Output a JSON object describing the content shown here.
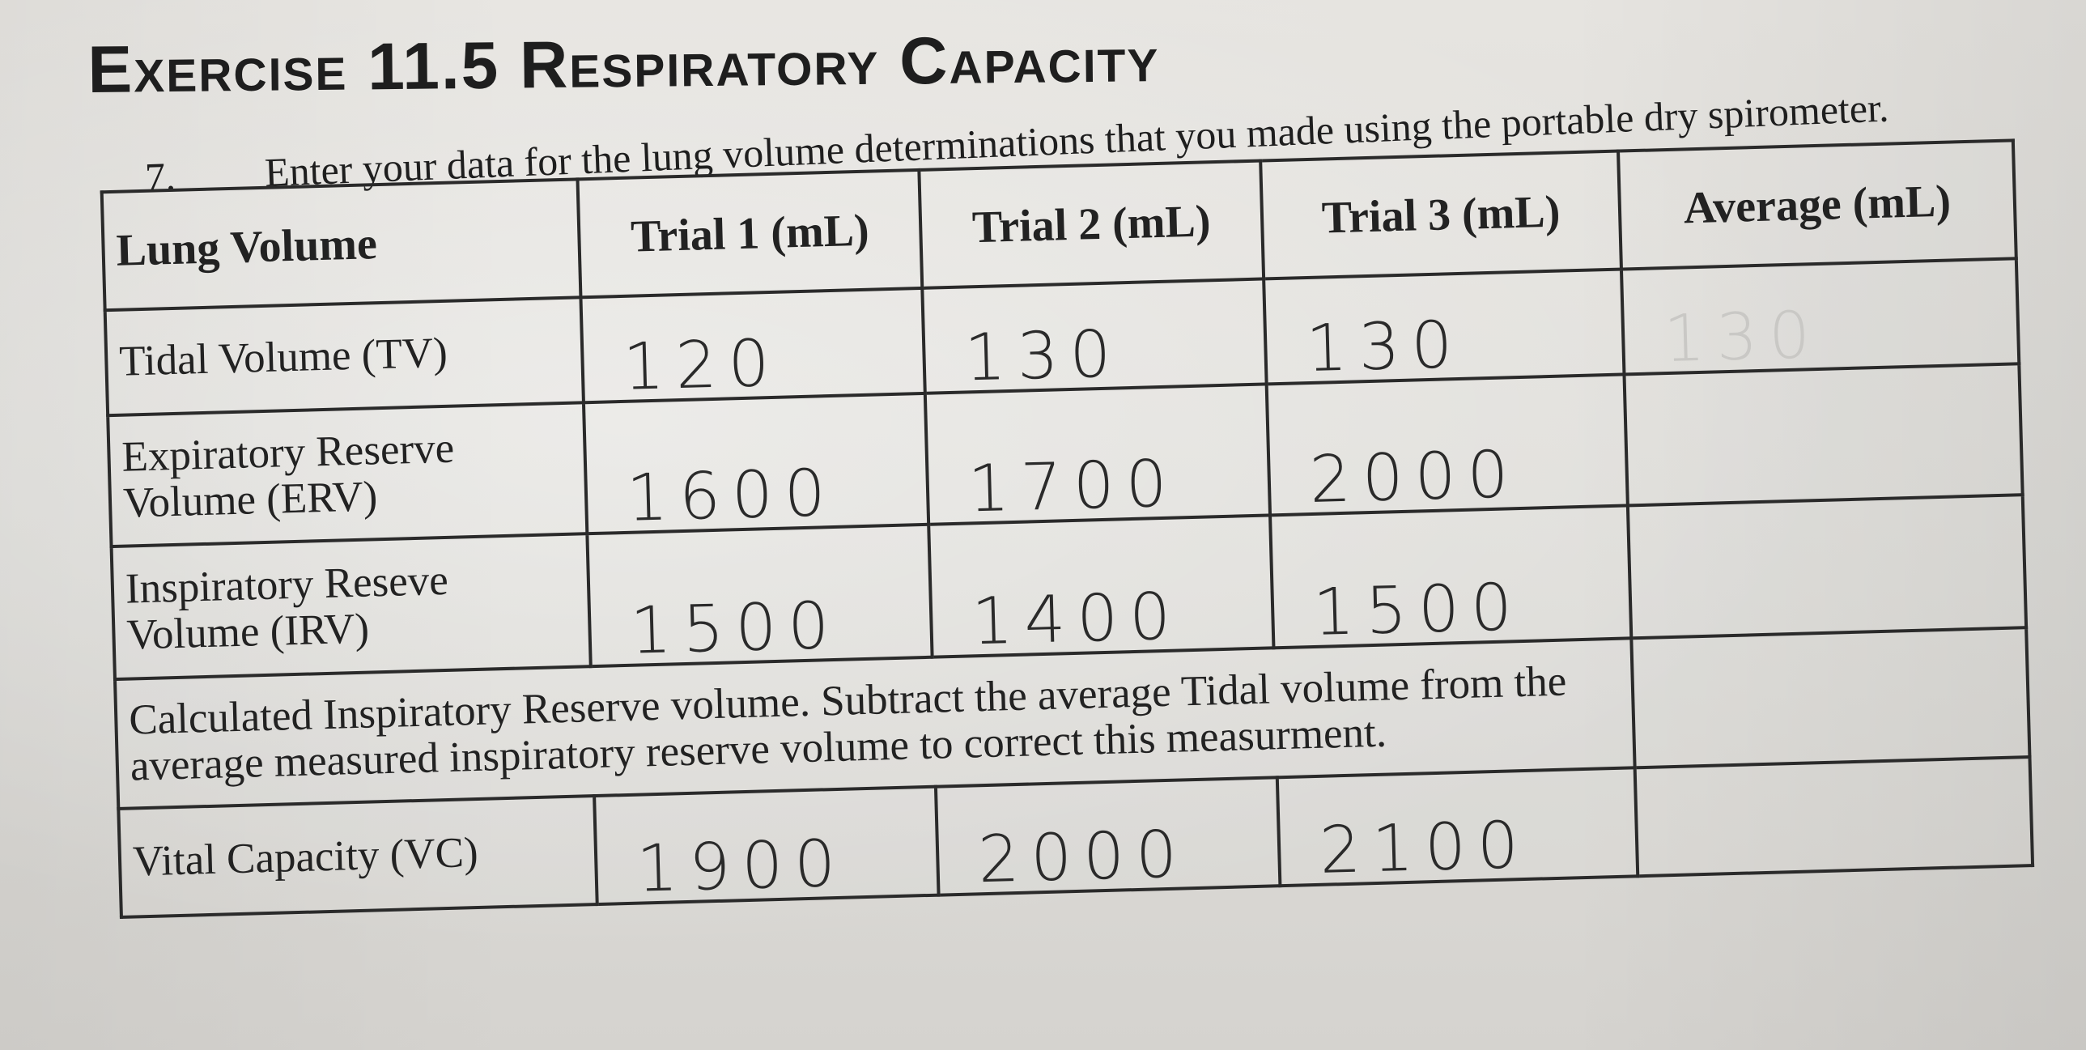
{
  "exercise": {
    "title": "Exercise 11.5 Respiratory Capacity"
  },
  "instruction": {
    "number": "7.",
    "text": "Enter your data for the lung volume determinations that you made using the portable dry spirometer."
  },
  "table": {
    "headers": [
      "Lung Volume",
      "Trial 1 (mL)",
      "Trial 2 (mL)",
      "Trial 3 (mL)",
      "Average (mL)"
    ],
    "rows": [
      {
        "label": "Tidal Volume (TV)",
        "trial1": "120",
        "trial2": "130",
        "trial3": "130",
        "average": "130"
      },
      {
        "label": "Expiratory Reserve Volume (ERV)",
        "trial1": "1600",
        "trial2": "1700",
        "trial3": "2000",
        "average": ""
      },
      {
        "label": "Inspiratory Reseve Volume (IRV)",
        "trial1": "1500",
        "trial2": "1400",
        "trial3": "1500",
        "average": ""
      }
    ],
    "calculated_row": {
      "text": "Calculated Inspiratory Reserve volume. Subtract the average Tidal volume from the average measured inspiratory reserve volume to correct this measurment.",
      "average": ""
    },
    "vc_row": {
      "label": "Vital Capacity (VC)",
      "trial1": "1900",
      "trial2": "2000",
      "trial3": "2100",
      "average": ""
    }
  }
}
